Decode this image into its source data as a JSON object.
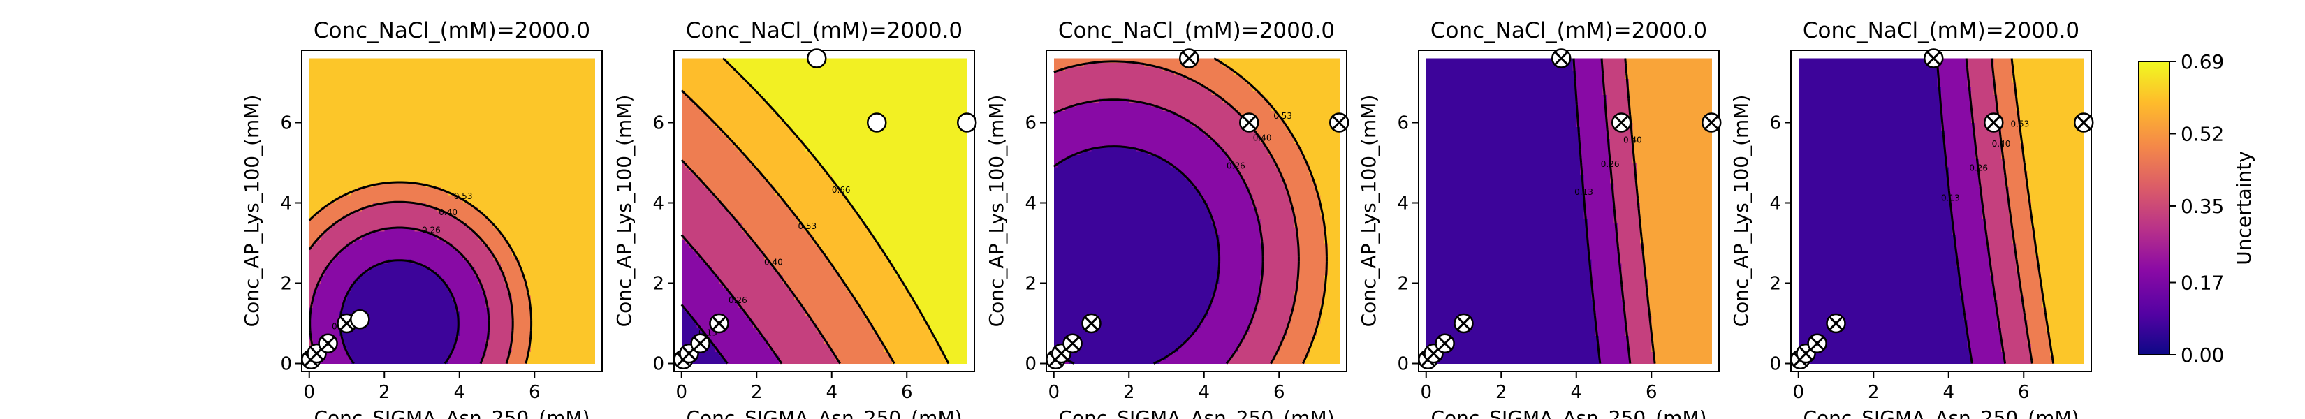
{
  "chart_data": {
    "type": "contour",
    "colormap": "plasma",
    "colorbar": {
      "label": "Uncertainty",
      "ticks": [
        "0.00",
        "0.17",
        "0.35",
        "0.52",
        "0.69"
      ],
      "range": [
        0,
        0.69
      ]
    },
    "panels": [
      {
        "title": "Conc_NaCl_(mM)=2000.0",
        "xlabel": "Conc_SIGMA_Asn_250_(mM)",
        "ylabel": "Conc_AP_Lys_100_(mM)",
        "xlim": [
          0,
          7.6
        ],
        "ylim": [
          0,
          7.6
        ],
        "xticks": [
          "0",
          "2",
          "4",
          "6"
        ],
        "yticks": [
          "0",
          "2",
          "4",
          "6"
        ],
        "levels": [
          0.13,
          0.26,
          0.4,
          0.53
        ],
        "contour_labels": [
          "0.13",
          "0.26",
          "0.40",
          "0.53"
        ],
        "field": {
          "type": "radial",
          "cx": 2.4,
          "cy": 1.0,
          "base": 0.03,
          "k": 0.0135,
          "max": 0.55
        },
        "points": [
          {
            "x": 0.05,
            "y": 0.1,
            "marker": "x"
          },
          {
            "x": 0.2,
            "y": 0.25,
            "marker": "x"
          },
          {
            "x": 0.5,
            "y": 0.5,
            "marker": "x"
          },
          {
            "x": 1.0,
            "y": 1.0,
            "marker": "x"
          },
          {
            "x": 1.35,
            "y": 1.1,
            "marker": "o"
          }
        ]
      },
      {
        "title": "Conc_NaCl_(mM)=2000.0",
        "xlabel": "Conc_SIGMA_Asn_250_(mM)",
        "ylabel": "Conc_AP_Lys_100_(mM)",
        "xlim": [
          0,
          7.6
        ],
        "ylim": [
          0,
          7.6
        ],
        "xticks": [
          "0",
          "2",
          "4",
          "6"
        ],
        "yticks": [
          "0",
          "2",
          "4",
          "6"
        ],
        "levels": [
          0.13,
          0.26,
          0.4,
          0.53,
          0.66
        ],
        "contour_labels": [
          "0.13",
          "0.26",
          "0.40",
          "0.53",
          "0.66"
        ],
        "field": {
          "type": "diagonal",
          "a": 0.09,
          "b": 0.075,
          "q": 0.0035,
          "max": 0.69
        },
        "points": [
          {
            "x": 0.05,
            "y": 0.1,
            "marker": "x"
          },
          {
            "x": 0.2,
            "y": 0.25,
            "marker": "x"
          },
          {
            "x": 0.5,
            "y": 0.5,
            "marker": "x"
          },
          {
            "x": 1.0,
            "y": 1.0,
            "marker": "x"
          },
          {
            "x": 3.6,
            "y": 7.6,
            "marker": "o"
          },
          {
            "x": 5.2,
            "y": 6.0,
            "marker": "o"
          },
          {
            "x": 7.6,
            "y": 6.0,
            "marker": "o"
          }
        ]
      },
      {
        "title": "Conc_NaCl_(mM)=2000.0",
        "xlabel": "Conc_SIGMA_Asn_250_(mM)",
        "ylabel": "Conc_AP_Lys_100_(mM)",
        "xlim": [
          0,
          7.6
        ],
        "ylim": [
          0,
          7.6
        ],
        "xticks": [
          "0",
          "2",
          "4",
          "6"
        ],
        "yticks": [
          "0",
          "2",
          "4",
          "6"
        ],
        "levels": [
          0.13,
          0.26,
          0.4,
          0.53
        ],
        "contour_labels": [
          "0.13",
          "0.26",
          "0.40",
          "0.53"
        ],
        "field": {
          "type": "radial",
          "cx": 1.6,
          "cy": 2.6,
          "base": 0.0,
          "k": 0.0055,
          "max": 0.69
        },
        "points": [
          {
            "x": 0.05,
            "y": 0.1,
            "marker": "x"
          },
          {
            "x": 0.2,
            "y": 0.25,
            "marker": "x"
          },
          {
            "x": 0.5,
            "y": 0.5,
            "marker": "x"
          },
          {
            "x": 1.0,
            "y": 1.0,
            "marker": "x"
          },
          {
            "x": 3.6,
            "y": 7.6,
            "marker": "x"
          },
          {
            "x": 5.2,
            "y": 6.0,
            "marker": "x"
          },
          {
            "x": 7.6,
            "y": 6.0,
            "marker": "x"
          }
        ]
      },
      {
        "title": "Conc_NaCl_(mM)=2000.0",
        "xlabel": "Conc_SIGMA_Asn_250_(mM)",
        "ylabel": "Conc_AP_Lys_100_(mM)",
        "xlim": [
          0,
          7.6
        ],
        "ylim": [
          0,
          7.6
        ],
        "xticks": [
          "0",
          "2",
          "4",
          "6"
        ],
        "yticks": [
          "0",
          "2",
          "4",
          "6"
        ],
        "levels": [
          0.13,
          0.26,
          0.4
        ],
        "contour_labels": [
          "0.13",
          "0.26",
          "0.40"
        ],
        "field": {
          "type": "slope",
          "a": 0.0058,
          "x0": 2.7,
          "c": 0.105,
          "max": 0.69
        },
        "points": [
          {
            "x": 0.05,
            "y": 0.1,
            "marker": "x"
          },
          {
            "x": 0.2,
            "y": 0.25,
            "marker": "x"
          },
          {
            "x": 0.5,
            "y": 0.5,
            "marker": "x"
          },
          {
            "x": 1.0,
            "y": 1.0,
            "marker": "x"
          },
          {
            "x": 3.6,
            "y": 7.6,
            "marker": "x"
          },
          {
            "x": 5.2,
            "y": 6.0,
            "marker": "x"
          },
          {
            "x": 7.6,
            "y": 6.0,
            "marker": "x"
          }
        ]
      },
      {
        "title": "Conc_NaCl_(mM)=2000.0",
        "xlabel": "Conc_SIGMA_Asn_250_(mM)",
        "ylabel": "Conc_AP_Lys_100_(mM)",
        "xlim": [
          0,
          7.6
        ],
        "ylim": [
          0,
          7.6
        ],
        "xticks": [
          "0",
          "2",
          "4",
          "6"
        ],
        "yticks": [
          "0",
          "2",
          "4",
          "6"
        ],
        "levels": [
          0.13,
          0.26,
          0.4,
          0.53
        ],
        "contour_labels": [
          "0.13",
          "0.26",
          "0.40",
          "0.53"
        ],
        "field": {
          "type": "slope",
          "a": 0.0048,
          "x0": 2.5,
          "c": 0.125,
          "max": 0.69
        },
        "points": [
          {
            "x": 0.05,
            "y": 0.1,
            "marker": "x"
          },
          {
            "x": 0.2,
            "y": 0.25,
            "marker": "x"
          },
          {
            "x": 0.5,
            "y": 0.5,
            "marker": "x"
          },
          {
            "x": 1.0,
            "y": 1.0,
            "marker": "x"
          },
          {
            "x": 3.6,
            "y": 7.6,
            "marker": "x"
          },
          {
            "x": 5.2,
            "y": 6.0,
            "marker": "x"
          },
          {
            "x": 7.6,
            "y": 6.0,
            "marker": "x"
          }
        ]
      }
    ]
  }
}
